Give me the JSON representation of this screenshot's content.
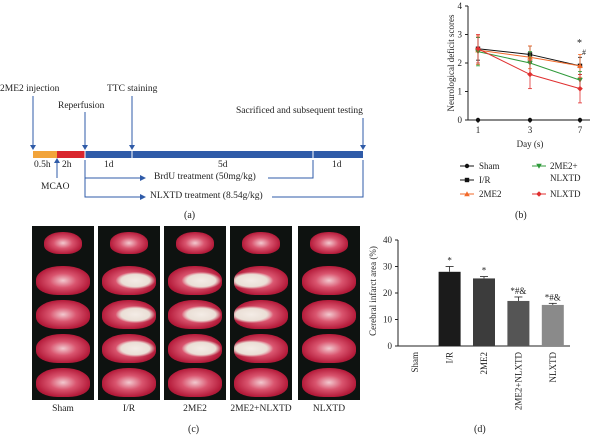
{
  "panels": {
    "a": {
      "letter": "(a)",
      "labels": {
        "injection": "2ME2 injection",
        "reperfusion": "Reperfusion",
        "ttc": "TTC staining",
        "sacrificed": "Sacrificed and subsequent testing",
        "t05": "0.5h",
        "t2": "2h",
        "d1a": "1d",
        "d5": "5d",
        "d1b": "1d",
        "mcao": "MCAO",
        "brdu": "BrdU treatment (50mg/kg)",
        "nlxtd": "NLXTD treatment (8.54g/kg)"
      },
      "colors": {
        "orange": "#f2a43a",
        "red": "#d9262d",
        "blue": "#2f5ba8"
      }
    },
    "b": {
      "letter": "(b)"
    },
    "c": {
      "letter": "(c)",
      "groups": [
        "Sham",
        "I/R",
        "2ME2",
        "2ME2+NLXTD",
        "NLXTD"
      ]
    },
    "d": {
      "letter": "(d)"
    }
  },
  "chart_data": [
    {
      "type": "line",
      "ylabel": "Neurological deficit scores",
      "xlabel": "Day (s)",
      "x": [
        1,
        3,
        7
      ],
      "ylim": [
        0,
        4
      ],
      "yticks": [
        0,
        1,
        2,
        3,
        4
      ],
      "series": [
        {
          "name": "Sham",
          "color": "#111111",
          "marker": "circle",
          "values": [
            0,
            0,
            0
          ],
          "err": [
            0,
            0,
            0
          ]
        },
        {
          "name": "I/R",
          "color": "#111111",
          "marker": "square",
          "values": [
            2.5,
            2.3,
            1.9
          ],
          "err": [
            0.4,
            0.3,
            0.3
          ]
        },
        {
          "name": "2ME2",
          "color": "#f26a2a",
          "marker": "triangle",
          "values": [
            2.45,
            2.2,
            1.9
          ],
          "err": [
            0.5,
            0.4,
            0.4
          ]
        },
        {
          "name": "2ME2+NLXTD",
          "color": "#2f9a3a",
          "marker": "triangle-down",
          "values": [
            2.4,
            2.0,
            1.4
          ],
          "err": [
            0.5,
            0.4,
            0.3
          ]
        },
        {
          "name": "NLXTD",
          "color": "#e03030",
          "marker": "diamond",
          "values": [
            2.5,
            1.6,
            1.1
          ],
          "err": [
            0.5,
            0.5,
            0.5
          ]
        }
      ],
      "annotations": [
        "*",
        "#"
      ],
      "legend": [
        "Sham",
        "2ME2+",
        "NLXTD",
        "I/R",
        "2ME2",
        "NLXTD"
      ]
    },
    {
      "type": "bar",
      "ylabel": "Cerebral infarct area (%)",
      "categories": [
        "Sham",
        "I/R",
        "2ME2",
        "2ME2+NLXTD",
        "NLXTD"
      ],
      "values": [
        0,
        28,
        25.5,
        17,
        15.5
      ],
      "err": [
        0,
        2,
        0.7,
        1.5,
        0.6
      ],
      "colors": [
        "#111111",
        "#1b1b1b",
        "#3c3c3c",
        "#555555",
        "#8a8a8a"
      ],
      "marks": [
        "",
        "*",
        "*",
        "*#&",
        "*#&"
      ],
      "ylim": [
        0,
        40
      ],
      "yticks": [
        0,
        10,
        20,
        30,
        40
      ]
    }
  ]
}
